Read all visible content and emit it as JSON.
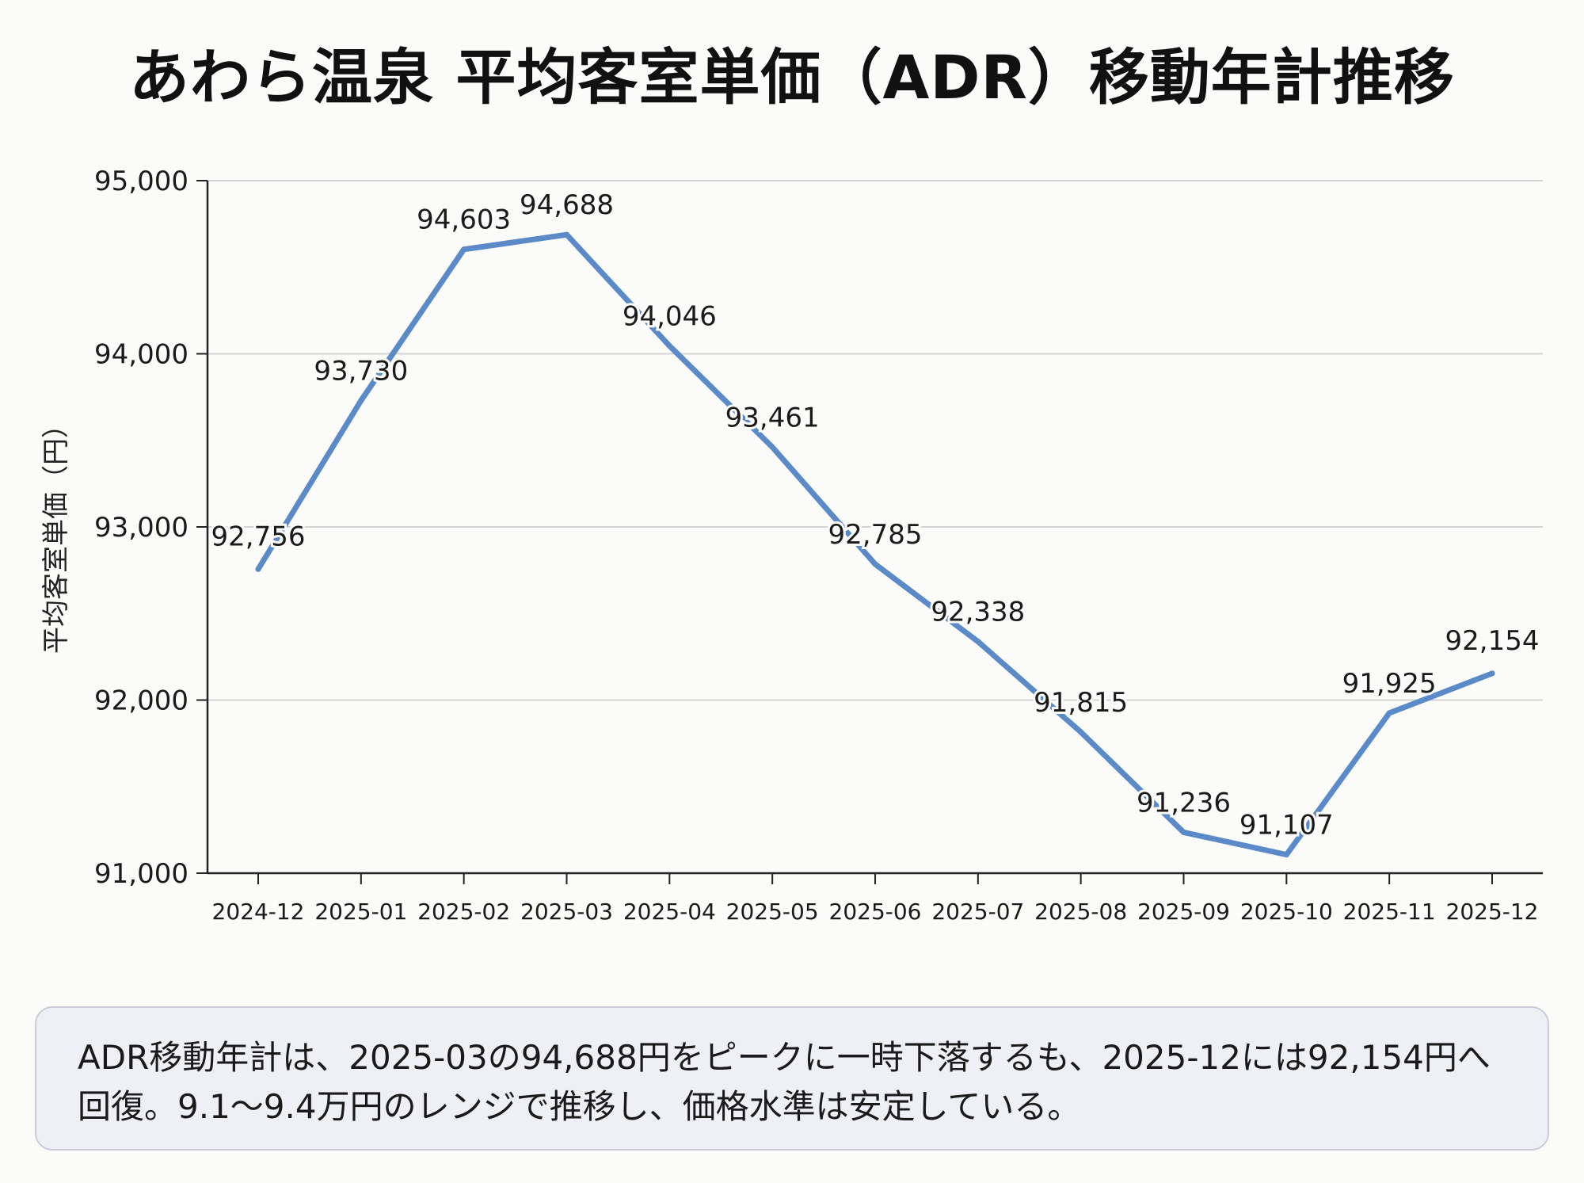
{
  "chart_data": {
    "type": "line",
    "title": "あわら温泉 平均客室単価（ADR）移動年計推移",
    "xlabel": "",
    "ylabel": "平均客室単価（円）",
    "categories": [
      "2024-12",
      "2025-01",
      "2025-02",
      "2025-03",
      "2025-04",
      "2025-05",
      "2025-06",
      "2025-07",
      "2025-08",
      "2025-09",
      "2025-10",
      "2025-11",
      "2025-12"
    ],
    "series": [
      {
        "name": "ADR移動年計",
        "values": [
          92756,
          93730,
          94603,
          94688,
          94046,
          93461,
          92785,
          92338,
          91815,
          91236,
          91107,
          91925,
          92154
        ],
        "labels": [
          "92,756",
          "93,730",
          "94,603",
          "94,688",
          "94,046",
          "93,461",
          "92,785",
          "92,338",
          "91,815",
          "91,236",
          "91,107",
          "91,925",
          "92,154"
        ]
      }
    ],
    "ylim": [
      91000,
      95000
    ],
    "yticks": [
      91000,
      92000,
      93000,
      94000,
      95000
    ],
    "ytick_labels": [
      "91,000",
      "92,000",
      "93,000",
      "94,000",
      "95,000"
    ],
    "grid": true,
    "colors": {
      "line": "#5b8ac8",
      "grid": "#d4d4d4",
      "axis": "#222222"
    }
  },
  "note": {
    "line1": "ADR移動年計は、2025-03の94,688円をピークに一時下落するも、2025-12には92,154円へ",
    "line2": "回復。9.1〜9.4万円のレンジで推移し、価格水準は安定している。"
  }
}
